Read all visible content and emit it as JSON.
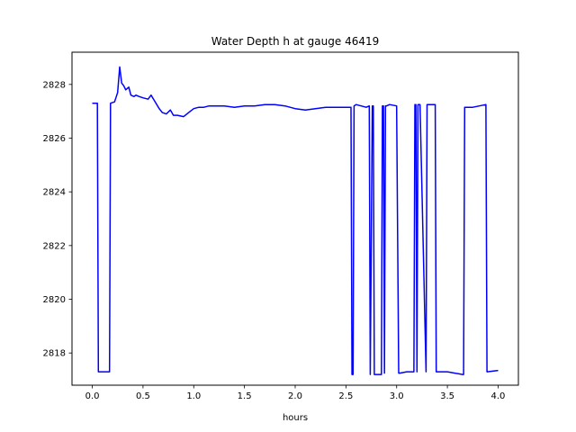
{
  "chart_data": {
    "type": "line",
    "title": "Water Depth h at gauge 46419",
    "xlabel": "hours",
    "ylabel": "",
    "xlim": [
      -0.2,
      4.2
    ],
    "ylim": [
      2816.8,
      2829.2
    ],
    "xticks": [
      0.0,
      0.5,
      1.0,
      1.5,
      2.0,
      2.5,
      3.0,
      3.5,
      4.0
    ],
    "xtick_labels": [
      "0.0",
      "0.5",
      "1.0",
      "1.5",
      "2.0",
      "2.5",
      "3.0",
      "3.5",
      "4.0"
    ],
    "yticks": [
      2818,
      2820,
      2822,
      2824,
      2826,
      2828
    ],
    "ytick_labels": [
      "2818",
      "2820",
      "2822",
      "2824",
      "2826",
      "2828"
    ],
    "grid": false,
    "series": [
      {
        "color": "#0000ff",
        "x": [
          0.0,
          0.05,
          0.06,
          0.17,
          0.18,
          0.22,
          0.25,
          0.27,
          0.29,
          0.31,
          0.33,
          0.36,
          0.38,
          0.41,
          0.43,
          0.46,
          0.5,
          0.55,
          0.58,
          0.62,
          0.66,
          0.69,
          0.73,
          0.77,
          0.8,
          0.84,
          0.9,
          0.95,
          1.0,
          1.05,
          1.1,
          1.15,
          1.2,
          1.3,
          1.4,
          1.5,
          1.6,
          1.7,
          1.8,
          1.9,
          2.0,
          2.1,
          2.2,
          2.3,
          2.4,
          2.5,
          2.55,
          2.56,
          2.57,
          2.58,
          2.6,
          2.7,
          2.73,
          2.74,
          2.76,
          2.77,
          2.78,
          2.79,
          2.85,
          2.86,
          2.87,
          2.88,
          2.89,
          2.9,
          2.93,
          3.0,
          3.02,
          3.03,
          3.1,
          3.17,
          3.18,
          3.19,
          3.2,
          3.21,
          3.22,
          3.23,
          3.29,
          3.3,
          3.31,
          3.38,
          3.39,
          3.5,
          3.65,
          3.66,
          3.67,
          3.75,
          3.88,
          3.89,
          4.0
        ],
        "y": [
          2827.3,
          2827.3,
          2817.3,
          2817.3,
          2827.3,
          2827.35,
          2827.7,
          2828.65,
          2828.05,
          2827.95,
          2827.8,
          2827.9,
          2827.6,
          2827.55,
          2827.6,
          2827.55,
          2827.5,
          2827.45,
          2827.6,
          2827.35,
          2827.1,
          2826.95,
          2826.9,
          2827.05,
          2826.85,
          2826.85,
          2826.8,
          2826.95,
          2827.1,
          2827.15,
          2827.15,
          2827.2,
          2827.2,
          2827.2,
          2827.15,
          2827.2,
          2827.2,
          2827.25,
          2827.25,
          2827.2,
          2827.1,
          2827.05,
          2827.1,
          2827.15,
          2827.15,
          2827.15,
          2827.15,
          2817.2,
          2817.2,
          2827.2,
          2827.25,
          2827.15,
          2827.2,
          2817.2,
          2827.2,
          2827.2,
          2817.2,
          2817.2,
          2817.2,
          2827.2,
          2827.2,
          2817.25,
          2827.2,
          2827.2,
          2827.25,
          2827.2,
          2817.25,
          2817.25,
          2817.3,
          2817.3,
          2827.25,
          2827.25,
          2817.3,
          2827.25,
          2827.25,
          2827.25,
          2817.3,
          2827.25,
          2827.25,
          2827.25,
          2817.3,
          2817.3,
          2817.2,
          2817.2,
          2827.15,
          2827.15,
          2827.25,
          2817.3,
          2817.35
        ]
      }
    ]
  }
}
